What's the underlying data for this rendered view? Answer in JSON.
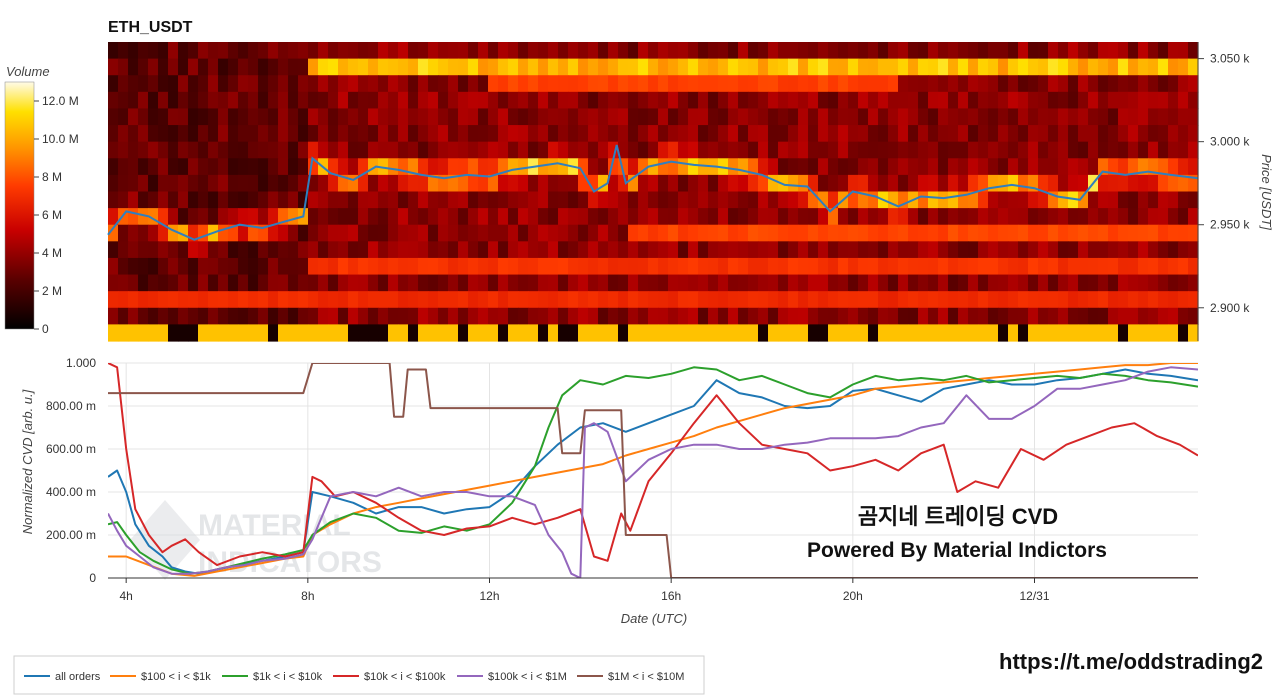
{
  "heatmap": {
    "title": "ETH_USDT",
    "colorbar_title": "Volume",
    "colorbar_ticks": [
      "12.0 M",
      "10.0 M",
      "8 M",
      "6 M",
      "4 M",
      "2 M",
      "0"
    ],
    "colorbar_tick_values": [
      12,
      10,
      8,
      6,
      4,
      2,
      0
    ],
    "price_axis_label": "Price [USDT]",
    "price_ticks": [
      "3.050 k",
      "3.000 k",
      "2.950 k",
      "2.900 k"
    ],
    "price_tick_values": [
      3050,
      3000,
      2950,
      2900
    ],
    "price_range": [
      2880,
      3060
    ]
  },
  "chart_data": [
    {
      "type": "heatmap",
      "title": "ETH_USDT",
      "ylabel": "Price [USDT]",
      "x_range_hours": [
        3.6,
        27.6
      ],
      "y_range": [
        2880,
        3060
      ],
      "colorscale_range_M": [
        0,
        13
      ],
      "price_line": {
        "x_hours": [
          3.6,
          4,
          4.5,
          5,
          5.5,
          6,
          6.5,
          7,
          7.5,
          7.9,
          8.1,
          8.5,
          9,
          9.5,
          10,
          10.5,
          11,
          11.5,
          12,
          12.5,
          13,
          13.5,
          14,
          14.3,
          14.6,
          14.8,
          15,
          15.5,
          16,
          16.5,
          17,
          17.5,
          18,
          18.5,
          19,
          19.5,
          20,
          20.5,
          21,
          21.5,
          22,
          22.5,
          23,
          23.5,
          24,
          24.5,
          25,
          25.5,
          26,
          26.5,
          27,
          27.6
        ],
        "price": [
          2944,
          2958,
          2955,
          2947,
          2941,
          2946,
          2950,
          2948,
          2952,
          2955,
          2990,
          2981,
          2977,
          2985,
          2983,
          2980,
          2978,
          2980,
          2979,
          2983,
          2985,
          2987,
          2984,
          2970,
          2975,
          2998,
          2975,
          2985,
          2988,
          2986,
          2985,
          2983,
          2980,
          2974,
          2973,
          2958,
          2970,
          2967,
          2961,
          2967,
          2966,
          2968,
          2972,
          2974,
          2972,
          2967,
          2965,
          2982,
          2980,
          2982,
          2980,
          2978
        ]
      }
    },
    {
      "type": "line",
      "xlabel": "Date (UTC)",
      "ylabel": "Normalized CVD [arb. u.]",
      "ylim": [
        0,
        1
      ],
      "x_ticks": [
        "4h",
        "8h",
        "12h",
        "16h",
        "20h",
        "12/31"
      ],
      "x_tick_hours": [
        4,
        8,
        12,
        16,
        20,
        24
      ],
      "y_ticks": [
        "0",
        "200.00 m",
        "400.00 m",
        "600.00 m",
        "800.00 m",
        "1.000"
      ],
      "y_tick_values": [
        0,
        0.2,
        0.4,
        0.6,
        0.8,
        1.0
      ],
      "x_range_hours": [
        3.6,
        27.6
      ],
      "series": [
        {
          "name": "all orders",
          "color": "#1f77b4",
          "x": [
            3.6,
            3.8,
            4.0,
            4.2,
            4.5,
            4.8,
            5.0,
            5.3,
            5.6,
            6.0,
            6.5,
            7.0,
            7.5,
            7.9,
            8.1,
            8.5,
            9.0,
            9.5,
            10.0,
            10.5,
            11.0,
            11.5,
            12.0,
            12.5,
            13.0,
            13.5,
            14.0,
            14.5,
            15.0,
            15.5,
            16.0,
            16.5,
            17.0,
            17.5,
            18.0,
            18.5,
            19.0,
            19.5,
            20.0,
            20.5,
            21.0,
            21.5,
            22.0,
            22.5,
            23.0,
            23.5,
            24.0,
            24.5,
            25.0,
            25.5,
            26.0,
            26.5,
            27.0,
            27.6
          ],
          "y": [
            0.47,
            0.5,
            0.4,
            0.25,
            0.15,
            0.1,
            0.05,
            0.03,
            0.02,
            0.04,
            0.06,
            0.08,
            0.1,
            0.12,
            0.4,
            0.38,
            0.35,
            0.3,
            0.33,
            0.33,
            0.3,
            0.32,
            0.33,
            0.4,
            0.52,
            0.62,
            0.7,
            0.72,
            0.68,
            0.72,
            0.76,
            0.8,
            0.92,
            0.86,
            0.84,
            0.8,
            0.79,
            0.8,
            0.87,
            0.88,
            0.85,
            0.82,
            0.88,
            0.9,
            0.92,
            0.9,
            0.9,
            0.92,
            0.93,
            0.95,
            0.97,
            0.95,
            0.94,
            0.92
          ]
        },
        {
          "name": "$100 < i < $1k",
          "color": "#ff7f0e",
          "x": [
            3.6,
            4.0,
            4.5,
            5.0,
            5.5,
            6.0,
            6.5,
            7.0,
            7.5,
            7.9,
            8.1,
            8.5,
            9.0,
            9.5,
            10.0,
            10.5,
            11.0,
            11.5,
            12.0,
            12.5,
            13.0,
            13.5,
            14.0,
            14.5,
            15.0,
            15.5,
            16.0,
            16.5,
            17.0,
            17.5,
            18.0,
            18.5,
            19.0,
            19.5,
            20.0,
            20.5,
            21.0,
            21.5,
            22.0,
            22.5,
            23.0,
            23.5,
            24.0,
            24.5,
            25.0,
            25.5,
            26.0,
            26.5,
            27.0,
            27.6
          ],
          "y": [
            0.1,
            0.1,
            0.06,
            0.02,
            0.01,
            0.03,
            0.05,
            0.07,
            0.09,
            0.1,
            0.2,
            0.25,
            0.3,
            0.33,
            0.35,
            0.37,
            0.39,
            0.41,
            0.43,
            0.45,
            0.47,
            0.49,
            0.51,
            0.53,
            0.57,
            0.6,
            0.63,
            0.66,
            0.7,
            0.73,
            0.76,
            0.79,
            0.81,
            0.83,
            0.85,
            0.88,
            0.89,
            0.9,
            0.91,
            0.92,
            0.93,
            0.94,
            0.95,
            0.96,
            0.97,
            0.98,
            0.99,
            0.99,
            1.0,
            1.0
          ]
        },
        {
          "name": "$1k < i < $10k",
          "color": "#2ca02c",
          "x": [
            3.6,
            3.8,
            4.0,
            4.3,
            4.6,
            5.0,
            5.4,
            5.8,
            6.2,
            6.6,
            7.0,
            7.5,
            7.9,
            8.1,
            8.5,
            9.0,
            9.5,
            10.0,
            10.5,
            11.0,
            11.5,
            12.0,
            12.5,
            13.0,
            13.3,
            13.6,
            14.0,
            14.5,
            15.0,
            15.5,
            16.0,
            16.5,
            17.0,
            17.5,
            18.0,
            18.5,
            19.0,
            19.5,
            20.0,
            20.5,
            21.0,
            21.5,
            22.0,
            22.5,
            23.0,
            23.5,
            24.0,
            24.5,
            25.0,
            25.5,
            26.0,
            26.5,
            27.0,
            27.6
          ],
          "y": [
            0.25,
            0.26,
            0.2,
            0.12,
            0.08,
            0.04,
            0.02,
            0.03,
            0.05,
            0.07,
            0.09,
            0.11,
            0.13,
            0.2,
            0.26,
            0.3,
            0.28,
            0.22,
            0.21,
            0.24,
            0.22,
            0.25,
            0.35,
            0.52,
            0.7,
            0.85,
            0.92,
            0.9,
            0.94,
            0.93,
            0.95,
            0.98,
            0.97,
            0.92,
            0.94,
            0.9,
            0.86,
            0.84,
            0.9,
            0.94,
            0.92,
            0.93,
            0.92,
            0.94,
            0.91,
            0.92,
            0.93,
            0.94,
            0.93,
            0.95,
            0.94,
            0.92,
            0.91,
            0.89
          ]
        },
        {
          "name": "$10k < i < $100k",
          "color": "#d62728",
          "x": [
            3.6,
            3.8,
            4.0,
            4.2,
            4.5,
            4.8,
            5.0,
            5.3,
            5.6,
            6.0,
            6.5,
            7.0,
            7.5,
            7.9,
            8.1,
            8.3,
            8.6,
            9.0,
            9.5,
            10.0,
            10.5,
            11.0,
            11.5,
            12.0,
            12.5,
            13.0,
            13.5,
            14.0,
            14.3,
            14.6,
            14.9,
            15.1,
            15.5,
            16.0,
            16.5,
            17.0,
            17.5,
            18.0,
            18.5,
            19.0,
            19.5,
            20.0,
            20.5,
            21.0,
            21.5,
            22.0,
            22.3,
            22.7,
            23.2,
            23.7,
            24.2,
            24.7,
            25.2,
            25.7,
            26.2,
            26.7,
            27.2,
            27.6
          ],
          "y": [
            1.0,
            0.98,
            0.6,
            0.32,
            0.2,
            0.12,
            0.15,
            0.18,
            0.12,
            0.06,
            0.1,
            0.12,
            0.1,
            0.12,
            0.47,
            0.45,
            0.38,
            0.4,
            0.35,
            0.28,
            0.22,
            0.2,
            0.23,
            0.24,
            0.28,
            0.25,
            0.28,
            0.32,
            0.1,
            0.08,
            0.3,
            0.22,
            0.45,
            0.58,
            0.72,
            0.85,
            0.72,
            0.62,
            0.6,
            0.58,
            0.5,
            0.52,
            0.55,
            0.5,
            0.58,
            0.62,
            0.4,
            0.45,
            0.42,
            0.6,
            0.55,
            0.62,
            0.66,
            0.7,
            0.72,
            0.66,
            0.62,
            0.57
          ]
        },
        {
          "name": "$100k < i < $1M",
          "color": "#9467bd",
          "x": [
            3.6,
            3.8,
            4.0,
            4.3,
            4.6,
            5.0,
            5.4,
            5.8,
            6.2,
            6.6,
            7.0,
            7.5,
            7.9,
            8.1,
            8.5,
            9.0,
            9.5,
            10.0,
            10.5,
            11.0,
            11.5,
            12.0,
            12.5,
            13.0,
            13.3,
            13.6,
            13.8,
            14.0,
            14.1,
            14.3,
            14.6,
            15.0,
            15.5,
            16.0,
            16.5,
            17.0,
            17.5,
            18.0,
            18.5,
            19.0,
            19.5,
            20.0,
            20.5,
            21.0,
            21.5,
            22.0,
            22.5,
            23.0,
            23.5,
            24.0,
            24.5,
            25.0,
            25.5,
            26.0,
            26.5,
            27.0,
            27.6
          ],
          "y": [
            0.3,
            0.22,
            0.15,
            0.1,
            0.05,
            0.02,
            0.02,
            0.03,
            0.05,
            0.06,
            0.08,
            0.09,
            0.11,
            0.18,
            0.38,
            0.4,
            0.38,
            0.42,
            0.38,
            0.4,
            0.4,
            0.38,
            0.38,
            0.34,
            0.2,
            0.12,
            0.02,
            0.0,
            0.7,
            0.72,
            0.68,
            0.45,
            0.55,
            0.6,
            0.62,
            0.62,
            0.6,
            0.6,
            0.62,
            0.63,
            0.65,
            0.65,
            0.65,
            0.66,
            0.7,
            0.72,
            0.85,
            0.74,
            0.74,
            0.8,
            0.88,
            0.88,
            0.9,
            0.92,
            0.96,
            0.98,
            0.97
          ]
        },
        {
          "name": "$1M < i < $10M",
          "color": "#8c564b",
          "x": [
            3.6,
            4.0,
            5.0,
            6.0,
            7.0,
            7.9,
            8.1,
            9.0,
            9.8,
            9.9,
            10.1,
            10.2,
            10.6,
            10.7,
            11.5,
            12.0,
            13.0,
            13.5,
            13.6,
            14.0,
            14.1,
            14.2,
            14.9,
            15.0,
            15.1,
            15.2,
            15.9,
            16.0,
            27.6
          ],
          "y": [
            0.86,
            0.86,
            0.86,
            0.86,
            0.86,
            0.86,
            1.0,
            1.0,
            1.0,
            0.75,
            0.75,
            0.97,
            0.97,
            0.79,
            0.79,
            0.79,
            0.79,
            0.79,
            0.58,
            0.58,
            0.78,
            0.78,
            0.78,
            0.2,
            0.2,
            0.2,
            0.2,
            0.0,
            0.0
          ]
        }
      ]
    }
  ],
  "overlay": {
    "line1": "곰지네 트레이딩 CVD",
    "line2": "Powered By Material Indictors",
    "watermark_top": "MATERIAL",
    "watermark_bottom": "INDICATORS"
  },
  "footer": {
    "telegram_link": "https://t.me/oddstrading2"
  }
}
